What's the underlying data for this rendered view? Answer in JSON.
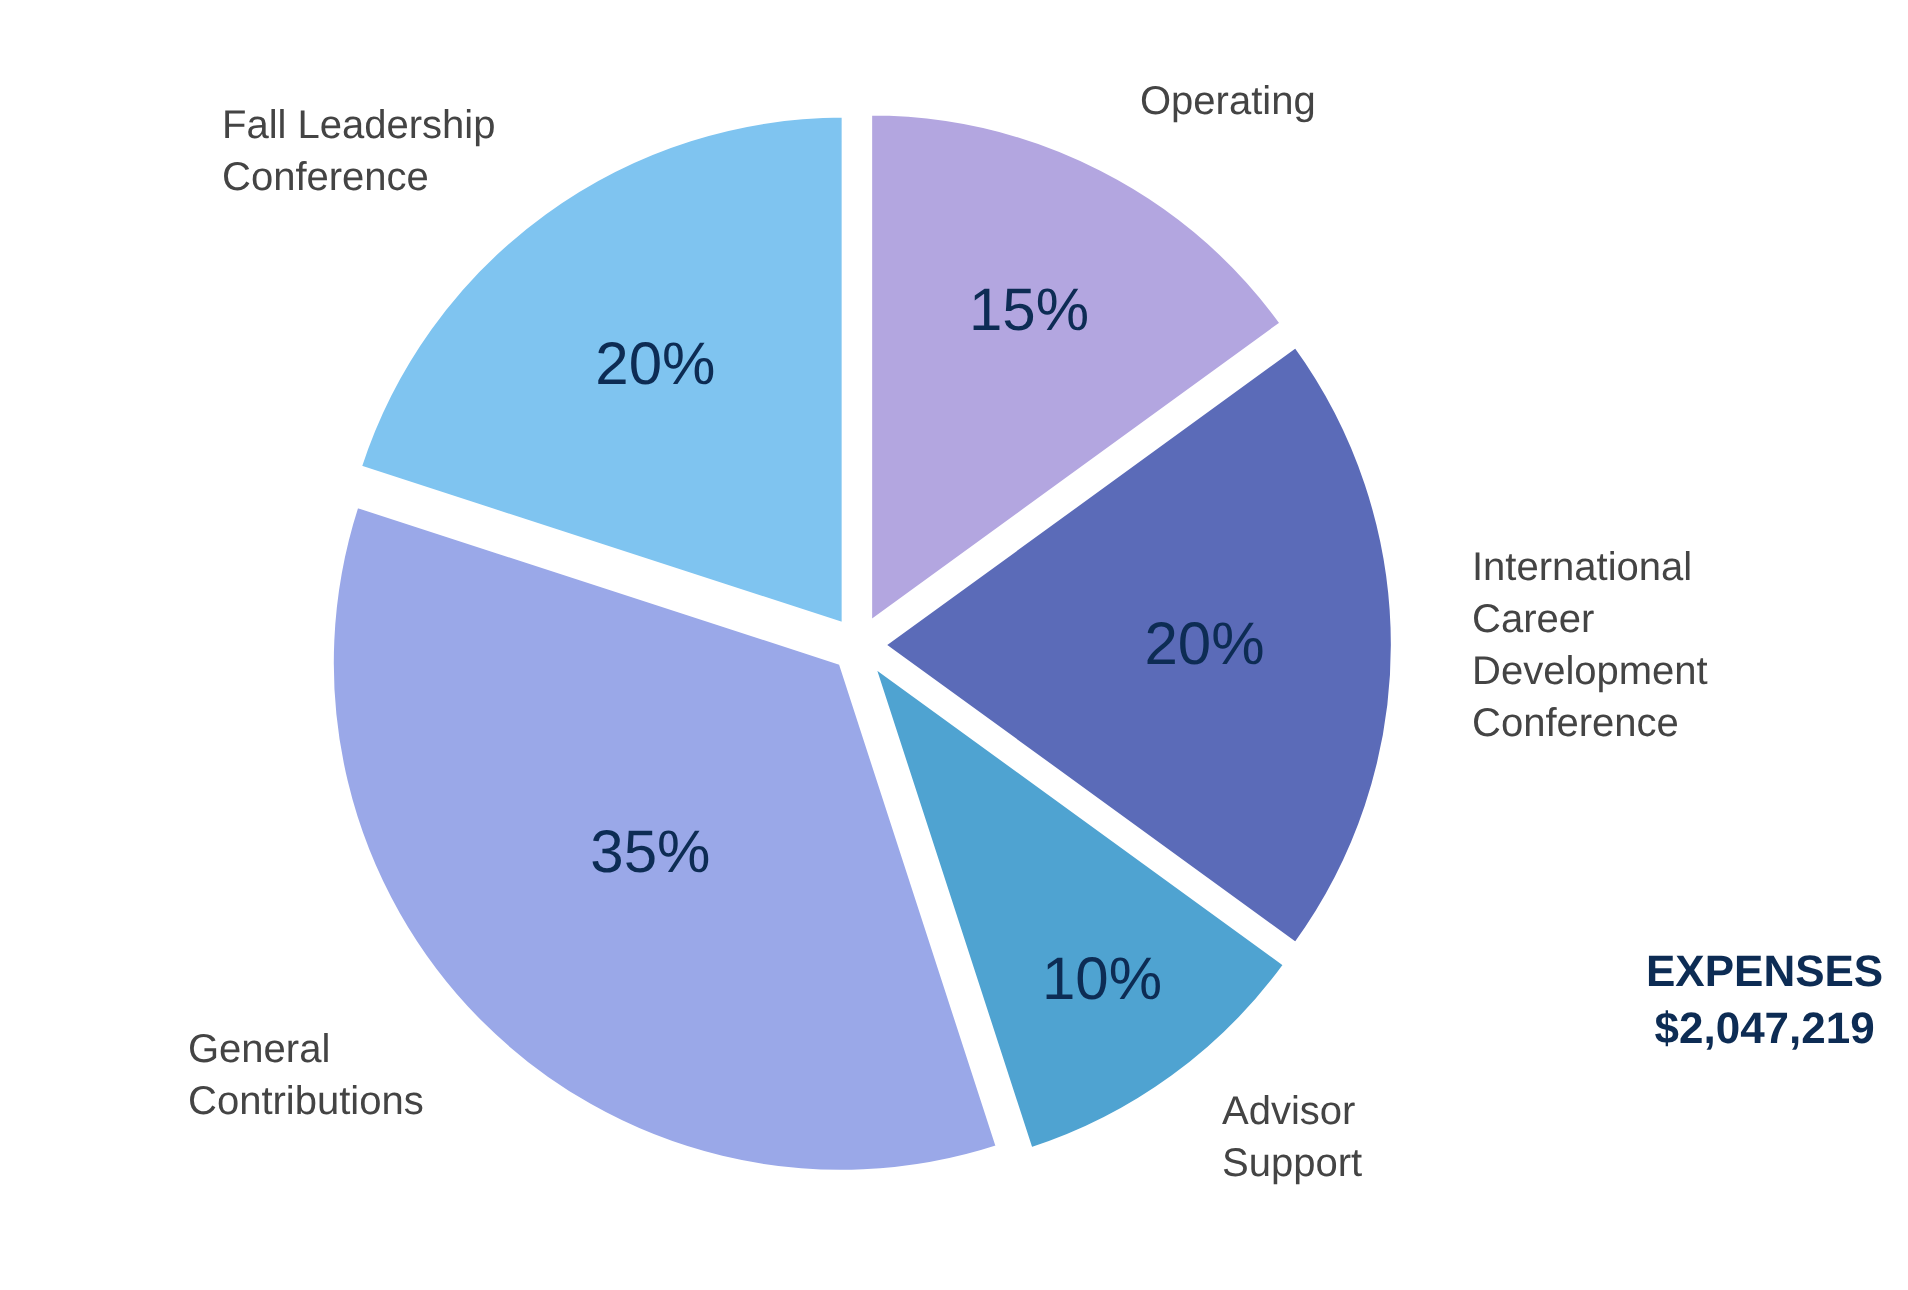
{
  "chart_data": {
    "type": "pie",
    "categories": [
      "Operating",
      "International\nCareer\nDevelopment\nConference",
      "Advisor\nSupport",
      "General\nContributions",
      "Fall Leadership\nConference"
    ],
    "values": [
      15,
      20,
      10,
      35,
      20
    ],
    "value_labels": [
      "15%",
      "20%",
      "10%",
      "35%",
      "20%"
    ],
    "colors": [
      "#b3a6e0",
      "#5b6bb8",
      "#4fa3d1",
      "#9aa8e8",
      "#7fc4f0"
    ],
    "annotations": [
      "EXPENSES\n$2,047,219"
    ],
    "legend": false
  }
}
